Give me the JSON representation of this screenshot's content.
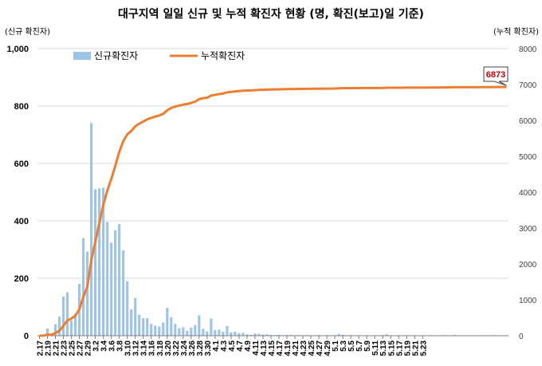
{
  "chart_data": {
    "type": "bar+line",
    "title": "대구지역 일일 신규 및 누적 확진자 현황 (명, 확진(보고)일 기준)",
    "ylabel_left": "(신규 확진자)",
    "ylabel_right": "(누적 확진자)",
    "ylim_left": [
      0,
      1000
    ],
    "ylim_right": [
      0,
      8000
    ],
    "yticks_left": [
      "0",
      "200",
      "400",
      "600",
      "800",
      "1,000"
    ],
    "yticks_right": [
      "0",
      "1000",
      "2000",
      "3000",
      "4000",
      "5000",
      "6000",
      "7000",
      "8000"
    ],
    "x_tick_labels": [
      "2.17",
      "2.19",
      "2.21",
      "2.23",
      "2.25",
      "2.27",
      "2.29",
      "3.2",
      "3.4",
      "3.6",
      "3.8",
      "3.10",
      "3.12",
      "3.14",
      "3.16",
      "3.18",
      "3.20",
      "3.22",
      "3.24",
      "3.26",
      "3.28",
      "3.30",
      "4.1",
      "4.3",
      "4.5",
      "4.7",
      "4.9",
      "4.11",
      "4.13",
      "4.15",
      "4.17",
      "4.19",
      "4.21",
      "4.23",
      "4.25",
      "4.27",
      "4.29",
      "5.1",
      "5.3",
      "5.5",
      "5.7",
      "5.9",
      "5.11",
      "5.13",
      "5.15",
      "5.17",
      "5.19",
      "5.21",
      "5.23"
    ],
    "legend": "top-left",
    "grid": true,
    "callout": "6873",
    "series": [
      {
        "name": "신규확진자",
        "kind": "bar",
        "axis": "left",
        "color": "#9dc3e6",
        "values": [
          1,
          0,
          25,
          5,
          40,
          67,
          136,
          151,
          53,
          77,
          181,
          340,
          293,
          741,
          510,
          513,
          516,
          396,
          324,
          367,
          389,
          297,
          190,
          92,
          131,
          73,
          61,
          61,
          41,
          35,
          32,
          46,
          97,
          64,
          41,
          26,
          29,
          17,
          28,
          37,
          71,
          24,
          15,
          60,
          20,
          21,
          14,
          34,
          12,
          14,
          9,
          10,
          5,
          3,
          8,
          7,
          4,
          5,
          3,
          2,
          3,
          2,
          2,
          3,
          1,
          2,
          1,
          2,
          1,
          1,
          2,
          1,
          2,
          0,
          1,
          6,
          3,
          2,
          1,
          0,
          1,
          1,
          0,
          0,
          1,
          0,
          2,
          5,
          1,
          0,
          1,
          0,
          1,
          1,
          0,
          0,
          1,
          0,
          2,
          0,
          1,
          2,
          0,
          1,
          3,
          0,
          0,
          0,
          0,
          1,
          0,
          2,
          0,
          1,
          2,
          0,
          0,
          0
        ]
      },
      {
        "name": "누적확진자",
        "kind": "line",
        "axis": "right",
        "color": "#ed7d31",
        "values": [
          1,
          1,
          26,
          31,
          71,
          138,
          274,
          425,
          478,
          555,
          736,
          1076,
          1369,
          2110,
          2620,
          3133,
          3649,
          4045,
          4369,
          4736,
          5125,
          5422,
          5612,
          5704,
          5835,
          5908,
          5969,
          6030,
          6071,
          6106,
          6138,
          6184,
          6281,
          6345,
          6386,
          6412,
          6441,
          6458,
          6486,
          6523,
          6594,
          6618,
          6633,
          6693,
          6713,
          6734,
          6748,
          6782,
          6794,
          6808,
          6817,
          6827,
          6832,
          6835,
          6843,
          6850,
          6854,
          6859,
          6862,
          6864,
          6867,
          6869,
          6871,
          6874,
          6875,
          6877,
          6878,
          6880,
          6881,
          6882,
          6884,
          6885,
          6887,
          6887,
          6888,
          6894,
          6897,
          6899,
          6900,
          6900,
          6901,
          6902,
          6902,
          6902,
          6903,
          6903,
          6905,
          6910,
          6911,
          6911,
          6912,
          6912,
          6913,
          6914,
          6914,
          6914,
          6915,
          6915,
          6917,
          6917,
          6918,
          6920,
          6920,
          6921,
          6924,
          6924,
          6924,
          6924,
          6924,
          6925,
          6925,
          6927,
          6927,
          6928,
          6930,
          6930,
          6930,
          6930
        ]
      }
    ]
  },
  "colors": {
    "bar": "#9dc3e6",
    "line": "#ed7d31",
    "callout_text": "#c00000",
    "axis": "#7f7f7f"
  }
}
